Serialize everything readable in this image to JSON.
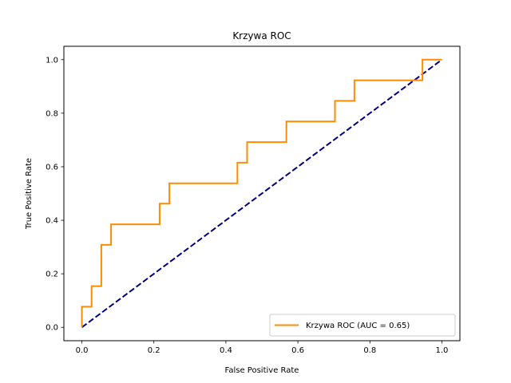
{
  "chart_data": {
    "type": "line",
    "title": "Krzywa ROC",
    "xlabel": "False Positive Rate",
    "ylabel": "True Positive Rate",
    "xlim": [
      -0.05,
      1.05
    ],
    "ylim": [
      -0.05,
      1.05
    ],
    "xticks": [
      "0.0",
      "0.2",
      "0.4",
      "0.6",
      "0.8",
      "1.0"
    ],
    "yticks": [
      "0.0",
      "0.2",
      "0.4",
      "0.6",
      "0.8",
      "1.0"
    ],
    "grid": false,
    "legend_position": "lower-right",
    "series": [
      {
        "name": "Krzywa ROC (AUC = 0.65)",
        "color": "#ff8c00",
        "style": "solid",
        "points": [
          [
            0.0,
            0.0
          ],
          [
            0.0,
            0.077
          ],
          [
            0.027,
            0.077
          ],
          [
            0.027,
            0.154
          ],
          [
            0.054,
            0.154
          ],
          [
            0.054,
            0.308
          ],
          [
            0.081,
            0.308
          ],
          [
            0.081,
            0.385
          ],
          [
            0.216,
            0.385
          ],
          [
            0.216,
            0.462
          ],
          [
            0.243,
            0.462
          ],
          [
            0.243,
            0.538
          ],
          [
            0.432,
            0.538
          ],
          [
            0.432,
            0.615
          ],
          [
            0.459,
            0.615
          ],
          [
            0.459,
            0.692
          ],
          [
            0.568,
            0.692
          ],
          [
            0.568,
            0.769
          ],
          [
            0.703,
            0.769
          ],
          [
            0.703,
            0.846
          ],
          [
            0.757,
            0.846
          ],
          [
            0.757,
            0.923
          ],
          [
            0.946,
            0.923
          ],
          [
            0.946,
            1.0
          ],
          [
            1.0,
            1.0
          ]
        ]
      },
      {
        "color": "#000080",
        "style": "dashed",
        "points": [
          [
            0.0,
            0.0
          ],
          [
            1.0,
            1.0
          ]
        ]
      }
    ]
  }
}
